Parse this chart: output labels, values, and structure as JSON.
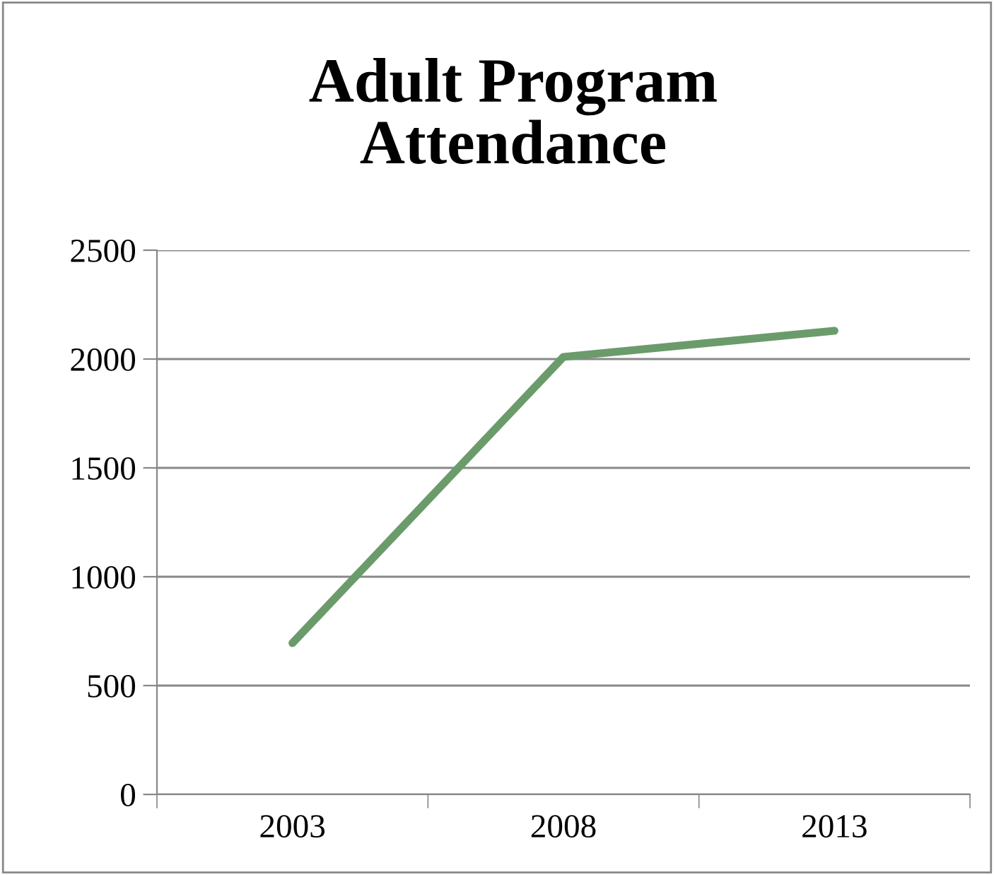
{
  "chart_data": {
    "type": "line",
    "title": "Adult Program\nAttendance",
    "categories": [
      "2003",
      "2008",
      "2013"
    ],
    "series": [
      {
        "color": "#6b9b6b",
        "values": [
          695,
          2010,
          2130
        ]
      }
    ],
    "ylim": [
      0,
      2500
    ],
    "yticks": [
      0,
      500,
      1000,
      1500,
      2000,
      2500
    ],
    "grid": "y",
    "marker": "none",
    "line_style": "solid"
  }
}
